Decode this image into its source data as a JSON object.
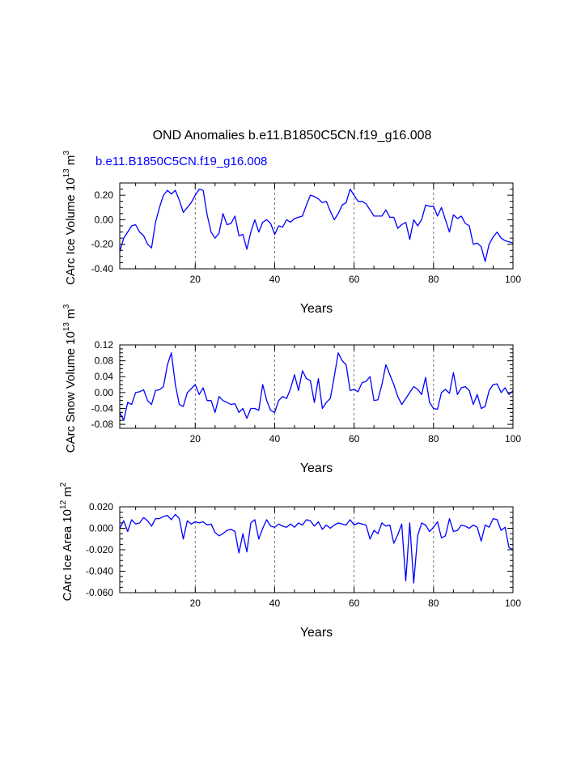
{
  "figure": {
    "title": "OND Anomalies b.e11.B1850C5CN.f19_g16.008",
    "case_label": "b.e11.B1850C5CN.f19_g16.008",
    "line_color": "#0000ff",
    "ref_line_style": "dashed"
  },
  "chart_data": [
    {
      "type": "line",
      "name": "CArc Ice Volume",
      "ylabel": "CArc Ice Volume 10",
      "ylabel_exp": "13",
      "ylabel_unit": " m",
      "ylabel_unit_exp": "3",
      "xlabel": "Years",
      "xlim": [
        1,
        100
      ],
      "ylim": [
        -0.4,
        0.3
      ],
      "xticks": [
        20,
        40,
        60,
        80,
        100
      ],
      "xtick_labels": [
        "20",
        "40",
        "60",
        "80",
        "100"
      ],
      "yticks": [
        -0.4,
        -0.2,
        0.0,
        0.2
      ],
      "ytick_labels": [
        "-0.40",
        "-0.20",
        "0.00",
        "0.20"
      ],
      "ref_lines_x": [
        20,
        40,
        60,
        80
      ],
      "x_start": 1,
      "values": [
        -0.26,
        -0.15,
        -0.1,
        -0.05,
        -0.04,
        -0.1,
        -0.13,
        -0.2,
        -0.23,
        -0.02,
        0.1,
        0.2,
        0.24,
        0.21,
        0.24,
        0.16,
        0.06,
        0.1,
        0.14,
        0.2,
        0.25,
        0.24,
        0.04,
        -0.1,
        -0.15,
        -0.11,
        0.05,
        -0.04,
        -0.03,
        0.03,
        -0.13,
        -0.12,
        -0.24,
        -0.1,
        0.0,
        -0.1,
        -0.02,
        0.0,
        -0.03,
        -0.12,
        -0.05,
        -0.06,
        0.0,
        -0.02,
        0.01,
        0.02,
        0.03,
        0.12,
        0.2,
        0.19,
        0.17,
        0.14,
        0.15,
        0.07,
        0.0,
        0.05,
        0.12,
        0.14,
        0.25,
        0.2,
        0.15,
        0.15,
        0.13,
        0.08,
        0.03,
        0.03,
        0.03,
        0.08,
        0.02,
        0.02,
        -0.07,
        -0.04,
        -0.02,
        -0.16,
        0.0,
        -0.05,
        0.0,
        0.12,
        0.11,
        0.11,
        0.03,
        0.1,
        0.0,
        -0.1,
        0.04,
        0.01,
        0.03,
        -0.03,
        -0.05,
        -0.2,
        -0.19,
        -0.22,
        -0.34,
        -0.2,
        -0.14,
        -0.1,
        -0.15,
        -0.17,
        -0.18,
        -0.19
      ]
    },
    {
      "type": "line",
      "name": "CArc Snow Volume",
      "ylabel": "CArc Snow Volume 10",
      "ylabel_exp": "13",
      "ylabel_unit": " m",
      "ylabel_unit_exp": "3",
      "xlabel": "Years",
      "xlim": [
        1,
        100
      ],
      "ylim": [
        -0.09,
        0.12
      ],
      "xticks": [
        20,
        40,
        60,
        80,
        100
      ],
      "xtick_labels": [
        "20",
        "40",
        "60",
        "80",
        "100"
      ],
      "yticks": [
        -0.08,
        -0.04,
        0.0,
        0.04,
        0.08,
        0.12
      ],
      "ytick_labels": [
        "-0.08",
        "-0.04",
        "0.00",
        "0.04",
        "0.08",
        "0.12"
      ],
      "ref_lines_x": [
        20,
        40,
        60,
        80
      ],
      "x_start": 1,
      "values": [
        -0.05,
        -0.07,
        -0.025,
        -0.03,
        0.0,
        0.002,
        0.007,
        -0.02,
        -0.03,
        0.005,
        0.007,
        0.015,
        0.07,
        0.1,
        0.02,
        -0.03,
        -0.035,
        0.0,
        0.01,
        0.02,
        -0.005,
        0.012,
        -0.02,
        -0.02,
        -0.05,
        -0.01,
        -0.02,
        -0.025,
        -0.03,
        -0.028,
        -0.05,
        -0.04,
        -0.065,
        -0.04,
        -0.04,
        -0.045,
        0.02,
        -0.02,
        -0.045,
        -0.05,
        -0.02,
        -0.01,
        -0.015,
        0.01,
        0.045,
        0.005,
        0.055,
        0.035,
        0.03,
        -0.025,
        0.035,
        -0.04,
        -0.025,
        -0.015,
        0.04,
        0.1,
        0.08,
        0.07,
        0.005,
        0.008,
        0.002,
        0.025,
        0.028,
        0.04,
        -0.02,
        -0.018,
        0.02,
        0.07,
        0.045,
        0.02,
        -0.01,
        -0.03,
        -0.015,
        0.0,
        0.015,
        0.008,
        -0.005,
        0.038,
        -0.025,
        -0.04,
        -0.042,
        0.0,
        0.008,
        -0.002,
        0.05,
        -0.005,
        0.012,
        0.015,
        0.005,
        -0.03,
        -0.005,
        -0.04,
        -0.035,
        0.005,
        0.02,
        0.022,
        0.0,
        0.012,
        -0.005,
        0.005
      ]
    },
    {
      "type": "line",
      "name": "CArc Ice Area",
      "ylabel": "CArc Ice Area 10",
      "ylabel_exp": "12",
      "ylabel_unit": " m",
      "ylabel_unit_exp": "2",
      "xlabel": "Years",
      "xlim": [
        1,
        100
      ],
      "ylim": [
        -0.06,
        0.02
      ],
      "xticks": [
        20,
        40,
        60,
        80,
        100
      ],
      "xtick_labels": [
        "20",
        "40",
        "60",
        "80",
        "100"
      ],
      "yticks": [
        -0.06,
        -0.04,
        -0.02,
        0.0,
        0.02
      ],
      "ytick_labels": [
        "-0.060",
        "-0.040",
        "-0.020",
        "0.000",
        "0.020"
      ],
      "ref_lines_x": [
        20,
        40,
        60,
        80
      ],
      "x_start": 1,
      "values": [
        0.0,
        0.007,
        -0.003,
        0.008,
        0.004,
        0.005,
        0.01,
        0.007,
        0.002,
        0.009,
        0.009,
        0.011,
        0.012,
        0.008,
        0.013,
        0.009,
        -0.01,
        0.007,
        0.004,
        0.006,
        0.005,
        0.006,
        0.003,
        0.004,
        -0.004,
        -0.007,
        -0.005,
        -0.002,
        -0.001,
        -0.003,
        -0.023,
        -0.005,
        -0.022,
        0.005,
        0.008,
        -0.01,
        0.0,
        0.008,
        0.002,
        0.001,
        0.004,
        0.002,
        0.001,
        0.004,
        0.001,
        0.005,
        0.003,
        0.008,
        0.007,
        0.002,
        0.006,
        -0.001,
        0.003,
        0.0,
        0.003,
        0.005,
        0.004,
        0.003,
        0.008,
        0.003,
        0.005,
        0.004,
        0.003,
        -0.01,
        -0.002,
        -0.005,
        0.005,
        0.002,
        0.003,
        -0.014,
        -0.006,
        0.004,
        -0.049,
        0.005,
        -0.051,
        -0.007,
        0.005,
        0.003,
        -0.003,
        0.001,
        0.006,
        -0.009,
        -0.007,
        0.009,
        -0.003,
        -0.002,
        0.003,
        0.002,
        0.0,
        0.003,
        0.001,
        -0.012,
        0.003,
        0.001,
        0.009,
        0.008,
        -0.002,
        0.001,
        -0.018,
        -0.02
      ]
    }
  ]
}
